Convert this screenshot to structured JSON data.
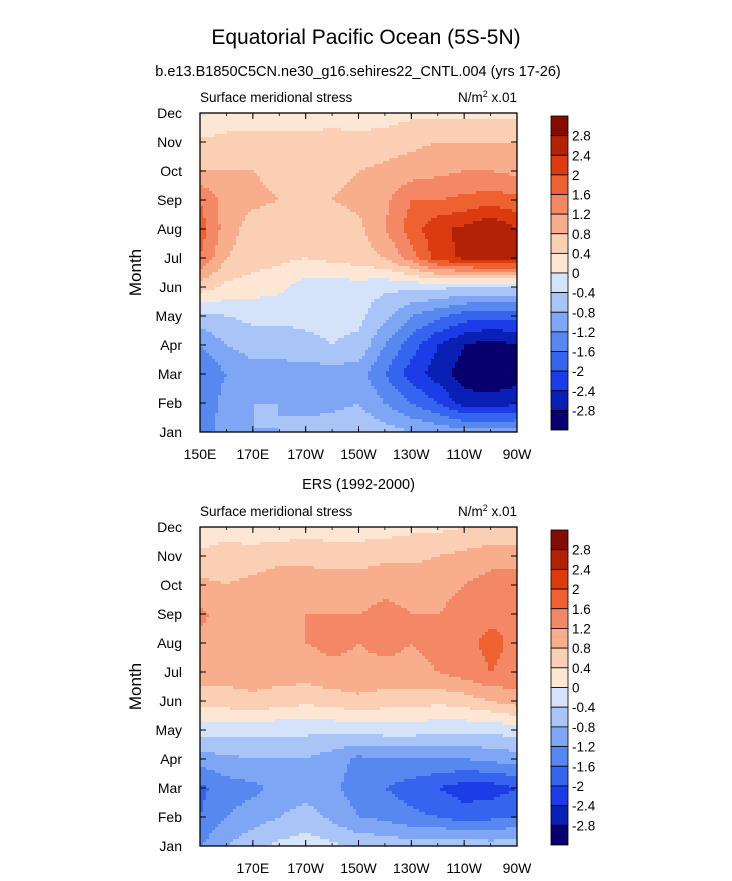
{
  "page": {
    "title": "Equatorial Pacific Ocean (5S-5N)",
    "subtitle": "b.e13.B1850C5CN.ne30_g16.sehires22_CNTL.004 (yrs 17-26)"
  },
  "colors": {
    "levels": [
      -2.8,
      -2.4,
      -2.0,
      -1.6,
      -1.2,
      -0.8,
      -0.4,
      0,
      0.4,
      0.8,
      1.2,
      1.6,
      2.0,
      2.4,
      2.8
    ],
    "palette": [
      "#08006e",
      "#0a1fb4",
      "#1b3ce6",
      "#3565ee",
      "#5688f0",
      "#7ea6f4",
      "#a9c4f6",
      "#d4e3fa",
      "#fde6d4",
      "#fbcfb3",
      "#f8ae8c",
      "#f48866",
      "#ee6232",
      "#dc3b0f",
      "#b32106",
      "#830c02"
    ],
    "colorbar_labels": [
      "2.8",
      "2.4",
      "2",
      "1.6",
      "1.2",
      "0.8",
      "0.4",
      "0",
      "-0.4",
      "-0.8",
      "-1.2",
      "-1.6",
      "-2",
      "-2.4",
      "-2.8"
    ]
  },
  "chart_data": [
    {
      "type": "heatmap",
      "panel_label": "",
      "left_label": "Surface meridional stress",
      "right_label": "N/m",
      "right_label_sup": "2",
      "right_label_suffix": " x.01",
      "ylabel": "Month",
      "y_ticks": [
        "Jan",
        "Feb",
        "Mar",
        "Apr",
        "May",
        "Jun",
        "Jul",
        "Aug",
        "Sep",
        "Oct",
        "Nov",
        "Dec"
      ],
      "x_ticks": [
        "150E",
        "170E",
        "170W",
        "150W",
        "130W",
        "110W",
        "90W"
      ],
      "x_tick_values": [
        150,
        170,
        190,
        210,
        230,
        250,
        270
      ],
      "xlim": [
        150,
        270
      ],
      "x": [
        150,
        160,
        170,
        180,
        190,
        200,
        210,
        220,
        230,
        240,
        250,
        260,
        270
      ],
      "months": [
        "Jan",
        "Feb",
        "Mar",
        "Apr",
        "May",
        "Jun",
        "Jul",
        "Aug",
        "Sep",
        "Oct",
        "Nov",
        "Dec"
      ],
      "z": [
        [
          -1.4,
          -1.0,
          -0.8,
          -0.8,
          -0.7,
          -0.6,
          -0.5,
          -0.6,
          -0.8,
          -0.9,
          -1.0,
          -1.0,
          -1.0
        ],
        [
          -1.6,
          -1.0,
          -0.8,
          -0.8,
          -0.9,
          -0.9,
          -0.8,
          -1.2,
          -1.6,
          -2.0,
          -2.6,
          -2.6,
          -2.5
        ],
        [
          -1.6,
          -1.2,
          -1.0,
          -1.0,
          -1.0,
          -1.0,
          -1.0,
          -1.6,
          -2.2,
          -2.6,
          -3.0,
          -3.2,
          -3.0
        ],
        [
          -1.2,
          -0.8,
          -0.6,
          -0.6,
          -0.5,
          -0.4,
          -0.5,
          -1.2,
          -1.8,
          -2.4,
          -2.8,
          -3.0,
          -2.8
        ],
        [
          -0.5,
          -0.4,
          -0.3,
          -0.3,
          -0.3,
          -0.3,
          -0.3,
          -0.7,
          -1.2,
          -1.5,
          -1.8,
          -1.9,
          -1.9
        ],
        [
          0.6,
          0.3,
          0.2,
          0.1,
          -0.2,
          -0.2,
          -0.2,
          -0.3,
          -0.3,
          -0.3,
          -0.4,
          -0.4,
          -0.4
        ],
        [
          1.6,
          0.8,
          0.6,
          0.5,
          0.4,
          0.5,
          0.6,
          0.8,
          1.4,
          2.2,
          2.5,
          2.7,
          2.6
        ],
        [
          1.8,
          1.0,
          0.6,
          0.5,
          0.4,
          0.6,
          0.7,
          1.2,
          1.8,
          2.3,
          2.5,
          2.8,
          2.4
        ],
        [
          1.6,
          1.0,
          0.9,
          0.8,
          0.8,
          0.8,
          0.9,
          1.1,
          1.6,
          1.6,
          1.7,
          1.8,
          1.7
        ],
        [
          0.8,
          0.8,
          0.8,
          0.7,
          0.7,
          0.7,
          0.8,
          0.9,
          1.0,
          1.1,
          1.2,
          1.2,
          1.1
        ],
        [
          0.5,
          0.5,
          0.5,
          0.5,
          0.5,
          0.5,
          0.5,
          0.6,
          0.7,
          0.8,
          0.8,
          0.8,
          0.8
        ],
        [
          -0.1,
          0.2,
          0.2,
          0.2,
          0.2,
          0.3,
          0.2,
          0.2,
          0.3,
          0.3,
          0.3,
          0.3,
          0.3
        ]
      ]
    },
    {
      "type": "heatmap",
      "panel_label": "ERS (1992-2000)",
      "left_label": "Surface meridional stress",
      "right_label": "N/m",
      "right_label_sup": "2",
      "right_label_suffix": " x.01",
      "ylabel": "Month",
      "y_ticks": [
        "Jan",
        "Feb",
        "Mar",
        "Apr",
        "May",
        "Jun",
        "Jul",
        "Aug",
        "Sep",
        "Oct",
        "Nov",
        "Dec"
      ],
      "x_ticks": [
        "170E",
        "170W",
        "150W",
        "130W",
        "110W",
        "90W"
      ],
      "x_tick_values": [
        170,
        190,
        210,
        230,
        250,
        270
      ],
      "xlim": [
        150,
        270
      ],
      "x": [
        150,
        160,
        170,
        180,
        190,
        200,
        210,
        220,
        230,
        240,
        250,
        260,
        270
      ],
      "months": [
        "Jan",
        "Feb",
        "Mar",
        "Apr",
        "May",
        "Jun",
        "Jul",
        "Aug",
        "Sep",
        "Oct",
        "Nov",
        "Dec"
      ],
      "z": [
        [
          -1.2,
          -0.8,
          -0.5,
          -0.3,
          -0.2,
          -0.3,
          -0.5,
          -0.5,
          -0.6,
          -0.5,
          -0.5,
          -0.6,
          -0.5
        ],
        [
          -1.6,
          -1.2,
          -1.0,
          -0.8,
          -0.6,
          -0.9,
          -1.2,
          -1.3,
          -1.5,
          -1.6,
          -1.8,
          -1.7,
          -1.6
        ],
        [
          -1.7,
          -1.4,
          -1.3,
          -1.1,
          -1.0,
          -1.1,
          -1.4,
          -1.6,
          -1.8,
          -2.0,
          -2.2,
          -2.2,
          -2.0
        ],
        [
          -1.0,
          -0.9,
          -0.8,
          -0.8,
          -0.8,
          -1.0,
          -1.3,
          -1.2,
          -1.2,
          -1.2,
          -1.2,
          -1.1,
          -1.0
        ],
        [
          -0.2,
          -0.2,
          -0.3,
          -0.3,
          -0.3,
          -0.3,
          -0.3,
          -0.2,
          -0.2,
          -0.3,
          -0.3,
          -0.3,
          -0.2
        ],
        [
          0.6,
          0.6,
          0.7,
          0.6,
          0.5,
          0.6,
          0.7,
          0.6,
          0.6,
          0.5,
          0.6,
          0.8,
          1.0
        ],
        [
          1.0,
          1.0,
          1.0,
          1.0,
          1.0,
          1.1,
          1.1,
          1.1,
          1.1,
          1.2,
          1.4,
          1.6,
          1.5
        ],
        [
          1.1,
          1.0,
          1.1,
          1.2,
          1.2,
          1.3,
          1.2,
          1.3,
          1.2,
          1.3,
          1.5,
          1.7,
          1.5
        ],
        [
          1.3,
          1.0,
          1.0,
          1.1,
          1.2,
          1.2,
          1.2,
          1.3,
          1.2,
          1.2,
          1.4,
          1.5,
          1.6
        ],
        [
          0.9,
          0.8,
          0.9,
          1.0,
          1.0,
          1.0,
          1.0,
          1.1,
          1.1,
          1.0,
          1.2,
          1.4,
          1.5
        ],
        [
          0.5,
          0.6,
          0.6,
          0.7,
          0.7,
          0.6,
          0.6,
          0.7,
          0.7,
          0.8,
          0.9,
          1.0,
          1.0
        ],
        [
          0.1,
          0.2,
          0.1,
          0.1,
          0.2,
          0.2,
          0.2,
          0.2,
          0.3,
          0.3,
          0.4,
          0.5,
          0.5
        ]
      ]
    }
  ]
}
